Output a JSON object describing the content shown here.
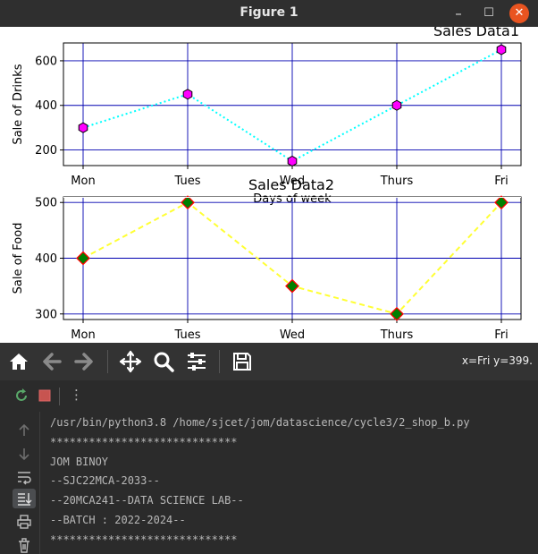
{
  "window": {
    "title": "Figure 1",
    "minimize": "–",
    "maximize": "☐",
    "close": "✕"
  },
  "chart_data": [
    {
      "type": "line",
      "title": "Sales Data1",
      "xlabel": "Days of week",
      "ylabel": "Sale of Drinks",
      "categories": [
        "Mon",
        "Tues",
        "Wed",
        "Thurs",
        "Fri"
      ],
      "series": [
        {
          "values": [
            300,
            450,
            150,
            400,
            650
          ],
          "color": "#00ffff",
          "marker_color": "#ff00ff",
          "line_style": "dotted",
          "marker": "hexagon"
        }
      ],
      "yticks": [
        200,
        400,
        600
      ],
      "ylim": [
        130,
        680
      ],
      "grid": true,
      "grid_color": "#0000b0"
    },
    {
      "type": "line",
      "title": "Sales Data2",
      "xlabel": "",
      "ylabel": "Sale of Food",
      "categories": [
        "Mon",
        "Tues",
        "Wed",
        "Thurs",
        "Fri"
      ],
      "series": [
        {
          "values": [
            400,
            500,
            350,
            300,
            500
          ],
          "color": "#ffff33",
          "marker_color": "#008000",
          "marker_edge": "#ff0000",
          "line_style": "dashed",
          "marker": "diamond"
        }
      ],
      "yticks": [
        300,
        400,
        500
      ],
      "ylim": [
        290,
        510
      ],
      "grid": true,
      "grid_color": "#0000b0"
    }
  ],
  "toolbar": {
    "home_icon": "home-icon",
    "back_icon": "arrow-left-icon",
    "forward_icon": "arrow-right-icon",
    "pan_icon": "move-icon",
    "zoom_icon": "magnifier-icon",
    "configure_icon": "sliders-icon",
    "save_icon": "floppy-icon",
    "coords": "x=Fri y=399."
  },
  "run_panel": {
    "rerun_icon": "rerun-icon",
    "stop_icon": "stop-icon",
    "more_icon": "⋮"
  },
  "console": {
    "lines": [
      "/usr/bin/python3.8 /home/sjcet/jom/datascience/cycle3/2_shop_b.py",
      "*****************************",
      "JOM BINOY",
      "--SJC22MCA-2033--",
      "--20MCA241--DATA SCIENCE LAB--",
      "--BATCH : 2022-2024--",
      "*****************************"
    ]
  }
}
